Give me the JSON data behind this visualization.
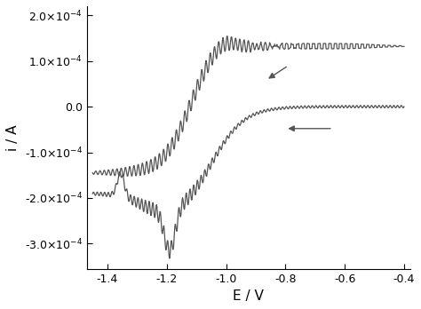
{
  "xlim": [
    -1.47,
    -0.38
  ],
  "ylim": [
    -0.000355,
    0.00022
  ],
  "xticks": [
    -1.4,
    -1.2,
    -1.0,
    -0.8,
    -0.6,
    -0.4
  ],
  "yticks": [
    -0.0003,
    -0.0002,
    -0.0001,
    0.0,
    0.0001,
    0.0002
  ],
  "xlabel": "E / V",
  "ylabel": "i / A",
  "line_color": "#555555",
  "background_color": "#ffffff",
  "figsize": [
    4.74,
    3.48
  ],
  "dpi": 100
}
